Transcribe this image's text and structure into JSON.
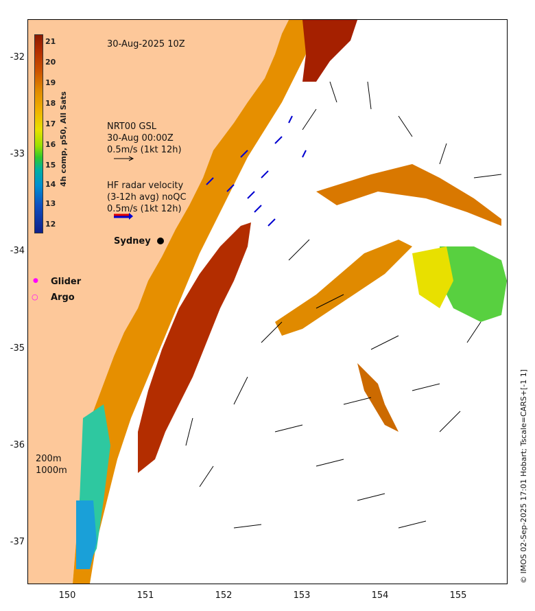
{
  "title": "30-Aug-2025 10Z",
  "colorbar": {
    "label": "4h comp, p50, All Sats",
    "ticks": [
      "21",
      "20",
      "19",
      "18",
      "17",
      "16",
      "15",
      "14",
      "13",
      "12"
    ]
  },
  "lat_ticks": [
    "-32",
    "-33",
    "-34",
    "-35",
    "-36",
    "-37"
  ],
  "lon_ticks": [
    "150",
    "151",
    "152",
    "153",
    "154",
    "155"
  ],
  "legend": {
    "nrt_title": "NRT00 GSL",
    "nrt_time": "30-Aug 00:00Z",
    "nrt_scale": "0.5m/s (1kt 12h)",
    "hf_title": "HF radar velocity",
    "hf_avg": "(3-12h avg) noQC",
    "hf_scale": "0.5m/s (1kt 12h)",
    "city": "Sydney",
    "glider": "Glider",
    "argo": "Argo",
    "depth1": "200m",
    "depth2": "1000m"
  },
  "credit": "© IMOS 02-Sep-2025 17:01 Hobart; Tscale=CARS+[-1 1]",
  "colors": {
    "land": "#fdc89a",
    "warm": "#b32d00",
    "mid": "#e08a00",
    "cool": "#2ec82e",
    "hf_arrow": "#0000d0",
    "glider": "#ff00ff"
  }
}
